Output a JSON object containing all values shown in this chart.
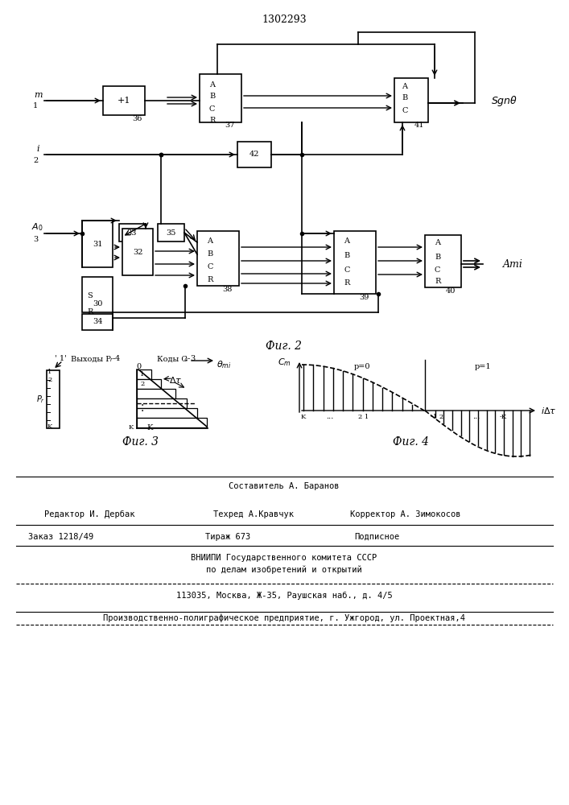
{
  "title": "1302293",
  "bg_color": "#ffffff",
  "fig2_caption": "Фиг. 2",
  "fig3_caption": "Фиг. 3",
  "fig4_caption": "Фиг. 4",
  "label_vyhody": "Выходы P",
  "label_kody": "Коды C",
  "footer1": "Составитель А. Баранов",
  "footer2a": "Редактор И. Дербак",
  "footer2b": "Техред А.Кравчук",
  "footer2c": "Корректор А. Зимокосов",
  "footer3a": "Заказ 1218/49",
  "footer3b": "Тираж 673",
  "footer3c": "Подписное",
  "footer4": "ВНИИПИ Государственного комитета СССР",
  "footer5": "по делам изобретений и открытий",
  "footer6": "113035, Москва, Ж-35, Раушская наб., д. 4/5",
  "footer7": "Производственно-полиграфическое предприятие, г. Ужгород, ул. Проектная,4"
}
